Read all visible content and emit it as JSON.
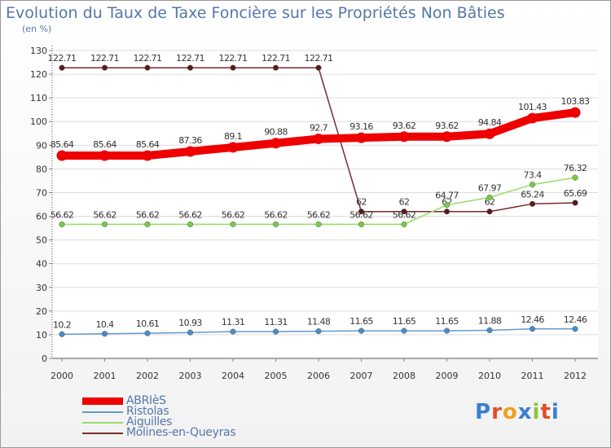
{
  "title": "Evolution du Taux de Taxe Foncière sur les Propriétés Non Bâties",
  "unit_label": "(en %)",
  "logo": {
    "letters": [
      "P",
      "r",
      "o",
      "x",
      "i",
      "t",
      "i"
    ],
    "colors": [
      "#3a7fd0",
      "#e24d2a",
      "#f0a020",
      "#3a7fd0",
      "#8ac43a",
      "#e24d2a",
      "#3a7fd0"
    ]
  },
  "chart_data": {
    "type": "line",
    "title": "Evolution du Taux de Taxe Foncière sur les Propriétés Non Bâties",
    "ylabel": "(en %)",
    "xlabel": "",
    "ylim": [
      0,
      130
    ],
    "yticks": [
      0,
      10,
      20,
      30,
      40,
      50,
      60,
      70,
      80,
      90,
      100,
      110,
      120,
      130
    ],
    "categories": [
      "2000",
      "2001",
      "2002",
      "2003",
      "2004",
      "2005",
      "2006",
      "2007",
      "2008",
      "2009",
      "2010",
      "2011",
      "2012"
    ],
    "series": [
      {
        "name": "Molines-en-Queyras",
        "color": "#7a2c2c",
        "marker": "#5a1a1a",
        "values": [
          122.71,
          122.71,
          122.71,
          122.71,
          122.71,
          122.71,
          122.71,
          62,
          62,
          62,
          62,
          65.24,
          65.69
        ],
        "labels": [
          "122.71",
          "122.71",
          "122.71",
          "122.71",
          "122.71",
          "122.71",
          "122.71",
          "62",
          "62",
          "62",
          "62",
          "65.24",
          "65.69"
        ]
      },
      {
        "name": "Aiguilles",
        "color": "#99dd66",
        "marker": "#77cc44",
        "values": [
          56.62,
          56.62,
          56.62,
          56.62,
          56.62,
          56.62,
          56.62,
          56.62,
          56.62,
          64.77,
          67.97,
          73.4,
          76.32
        ],
        "labels": [
          "56.62",
          "56.62",
          "56.62",
          "56.62",
          "56.62",
          "56.62",
          "56.62",
          "56.62",
          "56.62",
          "64.77",
          "67.97",
          "73.4",
          "76.32"
        ]
      },
      {
        "name": "Ristolas",
        "color": "#6699cc",
        "marker": "#4a8cc8",
        "values": [
          10.2,
          10.4,
          10.61,
          10.93,
          11.31,
          11.31,
          11.48,
          11.65,
          11.65,
          11.65,
          11.88,
          12.46,
          12.46
        ],
        "labels": [
          "10.2",
          "10.4",
          "10.61",
          "10.93",
          "11.31",
          "11.31",
          "11.48",
          "11.65",
          "11.65",
          "11.65",
          "11.88",
          "12.46",
          "12.46"
        ]
      },
      {
        "name": "ABRIèS",
        "color": "#ee0000",
        "marker": "#ee0000",
        "values": [
          85.64,
          85.64,
          85.64,
          87.36,
          89.1,
          90.88,
          92.7,
          93.16,
          93.62,
          93.62,
          94.84,
          101.43,
          103.83
        ],
        "labels": [
          "85.64",
          "85.64",
          "85.64",
          "87.36",
          "89.1",
          "90.88",
          "92.7",
          "93.16",
          "93.62",
          "93.62",
          "94.84",
          "101.43",
          "103.83"
        ]
      }
    ],
    "legend": [
      "ABRIèS",
      "Ristolas",
      "Aiguilles",
      "Molines-en-Queyras"
    ],
    "legend_position": "bottom-left"
  }
}
